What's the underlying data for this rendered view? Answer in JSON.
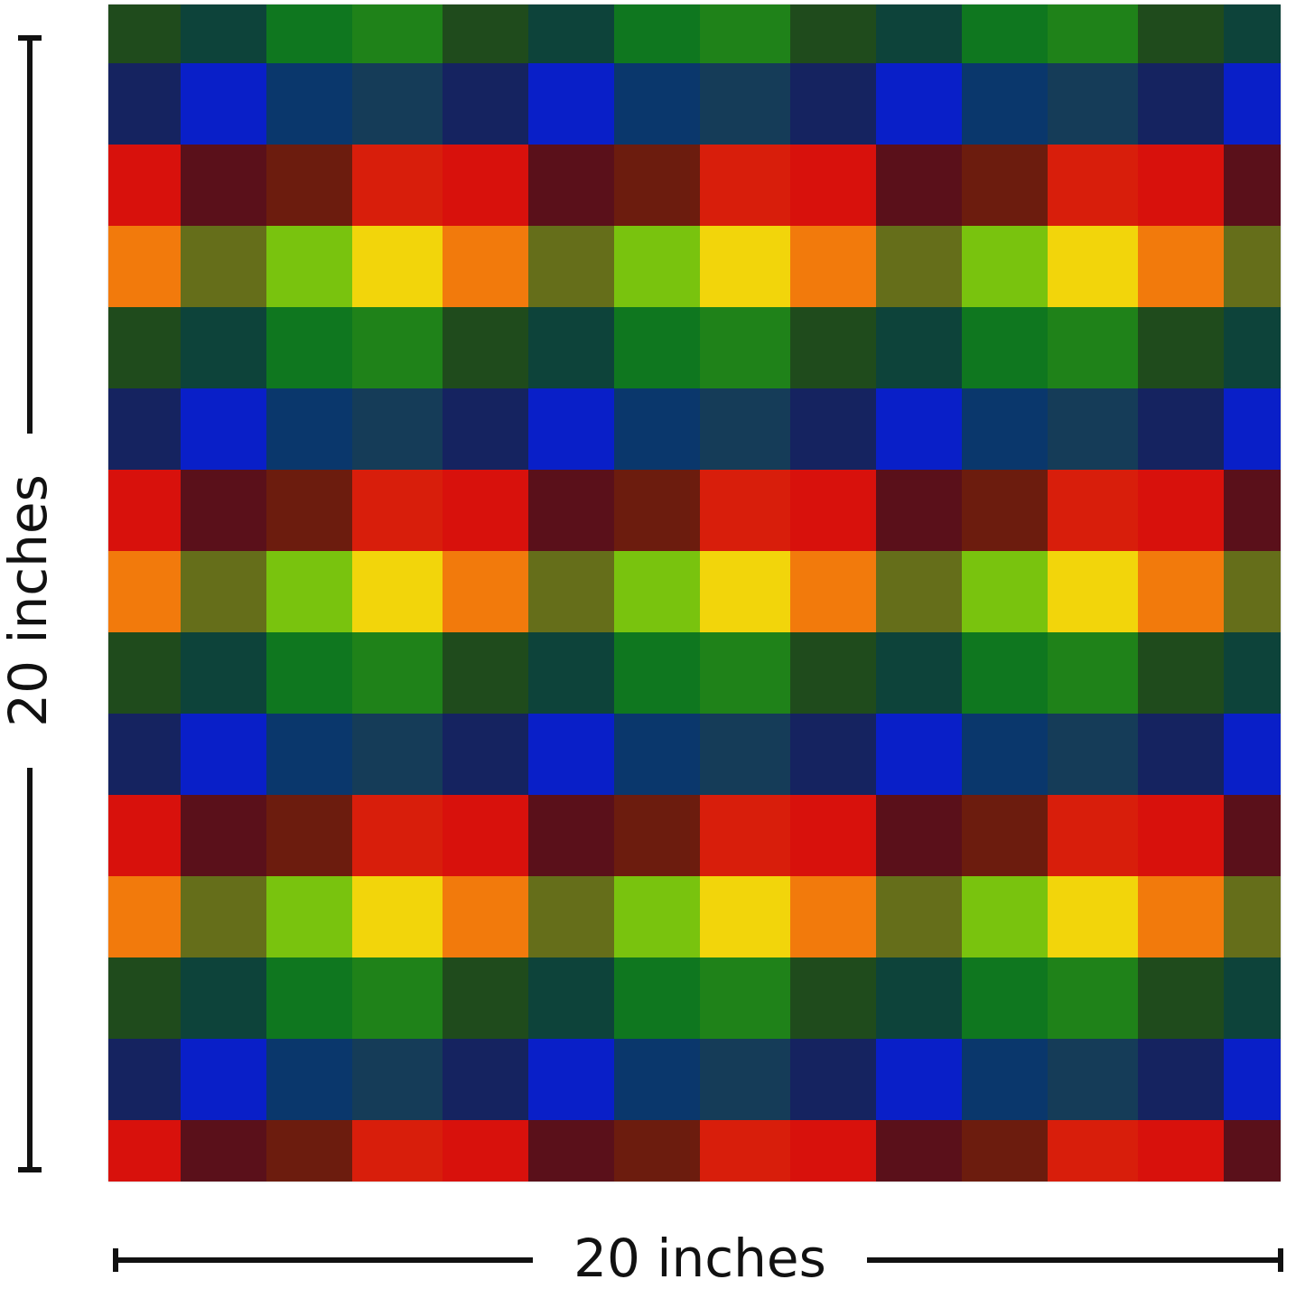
{
  "dimensions": {
    "height_label": "20 inches",
    "width_label": "20 inches"
  }
}
